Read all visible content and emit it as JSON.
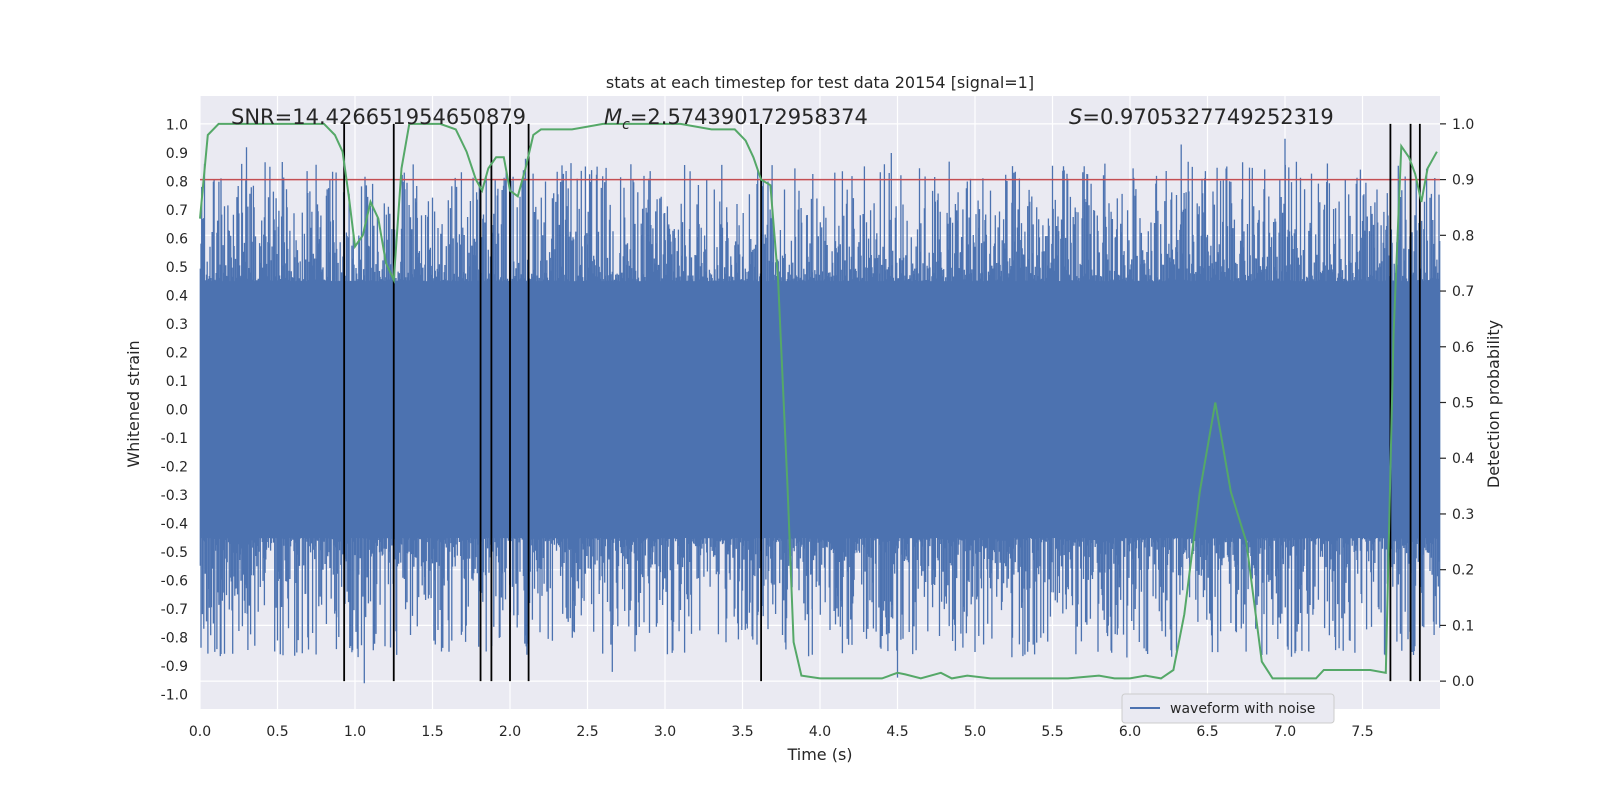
{
  "chart_data": {
    "type": "line",
    "title": "stats at each timestep for test data 20154 [signal=1]",
    "xlabel": "Time (s)",
    "ylabel": "Whitened strain",
    "ylabel_right": "Detection probability",
    "xlim": [
      0,
      8
    ],
    "ylim": [
      -1.05,
      1.1
    ],
    "ylim_right": [
      -0.05,
      1.05
    ],
    "x_ticks": [
      0.0,
      0.5,
      1.0,
      1.5,
      2.0,
      2.5,
      3.0,
      3.5,
      4.0,
      4.5,
      5.0,
      5.5,
      6.0,
      6.5,
      7.0,
      7.5
    ],
    "y_ticks": [
      1.0,
      0.9,
      0.8,
      0.7,
      0.6,
      0.5,
      0.4,
      0.3,
      0.2,
      0.1,
      0.0,
      -0.1,
      -0.2,
      -0.3,
      -0.4,
      -0.5,
      -0.6,
      -0.7,
      -0.8,
      -0.9,
      -1.0
    ],
    "y_ticks_right": [
      1.0,
      0.9,
      0.8,
      0.7,
      0.6,
      0.5,
      0.4,
      0.3,
      0.2,
      0.1,
      0.0
    ],
    "tick_labels_x": [
      "0.0",
      "0.5",
      "1.0",
      "1.5",
      "2.0",
      "2.5",
      "3.0",
      "3.5",
      "4.0",
      "4.5",
      "5.0",
      "5.5",
      "6.0",
      "6.5",
      "7.0",
      "7.5"
    ],
    "tick_labels_y": [
      "1.0",
      "0.9",
      "0.8",
      "0.7",
      "0.6",
      "0.5",
      "0.4",
      "0.3",
      "0.2",
      "0.1",
      "0.0",
      "-0.1",
      "-0.2",
      "-0.3",
      "-0.4",
      "-0.5",
      "-0.6",
      "-0.7",
      "-0.8",
      "-0.9",
      "-1.0"
    ],
    "tick_labels_y_right": [
      "1.0",
      "0.9",
      "0.8",
      "0.7",
      "0.6",
      "0.5",
      "0.4",
      "0.3",
      "0.2",
      "0.1",
      "0.0"
    ],
    "annotations": {
      "snr": "SNR=14.426651954650879",
      "mc_symbol": "M",
      "mc_sub": "c",
      "mc_value": "=2.574390172958374",
      "s_symbol": "S",
      "s_value": "=0.9705327749252319"
    },
    "threshold": 0.9,
    "event_lines_x": [
      0.93,
      1.25,
      1.81,
      1.88,
      2.0,
      2.12,
      3.62,
      7.68,
      7.81,
      7.87
    ],
    "series": [
      {
        "name": "waveform with noise",
        "color": "#4c72b0",
        "kind": "noise",
        "band_upper": 0.45,
        "band_lower": -0.45,
        "peaks": [
          [
            0.3,
            0.92
          ],
          [
            0.88,
            -0.84
          ],
          [
            1.06,
            -0.96
          ],
          [
            2.1,
            0.88
          ],
          [
            2.66,
            -0.92
          ],
          [
            3.95,
            -0.86
          ],
          [
            4.46,
            0.9
          ],
          [
            4.5,
            -0.94
          ],
          [
            4.95,
            0.8
          ],
          [
            5.0,
            -0.85
          ],
          [
            6.33,
            0.93
          ],
          [
            7.0,
            0.95
          ],
          [
            7.82,
            -0.85
          ]
        ]
      },
      {
        "name": "detection probability",
        "color": "#55a868",
        "kind": "line",
        "x": [
          0.0,
          0.05,
          0.12,
          0.2,
          0.35,
          0.5,
          0.65,
          0.8,
          0.87,
          0.92,
          0.96,
          1.0,
          1.05,
          1.1,
          1.15,
          1.2,
          1.25,
          1.3,
          1.35,
          1.4,
          1.55,
          1.65,
          1.72,
          1.78,
          1.82,
          1.86,
          1.91,
          1.96,
          2.0,
          2.05,
          2.1,
          2.15,
          2.2,
          2.3,
          2.4,
          2.6,
          2.75,
          2.9,
          3.1,
          3.3,
          3.45,
          3.52,
          3.57,
          3.62,
          3.68,
          3.73,
          3.79,
          3.83,
          3.88,
          4.0,
          4.2,
          4.4,
          4.5,
          4.55,
          4.65,
          4.78,
          4.85,
          4.95,
          5.1,
          5.2,
          5.4,
          5.6,
          5.8,
          5.9,
          6.0,
          6.1,
          6.2,
          6.28,
          6.35,
          6.45,
          6.55,
          6.65,
          6.75,
          6.85,
          6.92,
          7.0,
          7.2,
          7.25,
          7.3,
          7.4,
          7.55,
          7.65,
          7.7,
          7.75,
          7.8,
          7.84,
          7.88,
          7.92,
          7.98
        ],
        "y": [
          0.83,
          0.98,
          1.0,
          1.0,
          1.0,
          1.0,
          1.0,
          1.0,
          0.98,
          0.95,
          0.87,
          0.78,
          0.8,
          0.86,
          0.83,
          0.75,
          0.72,
          0.92,
          1.0,
          1.0,
          1.0,
          0.99,
          0.95,
          0.9,
          0.88,
          0.92,
          0.94,
          0.94,
          0.88,
          0.87,
          0.92,
          0.98,
          0.99,
          0.99,
          0.99,
          1.0,
          1.0,
          1.0,
          1.0,
          0.99,
          0.99,
          0.97,
          0.94,
          0.9,
          0.89,
          0.72,
          0.35,
          0.07,
          0.01,
          0.005,
          0.005,
          0.005,
          0.015,
          0.012,
          0.005,
          0.015,
          0.005,
          0.01,
          0.005,
          0.005,
          0.005,
          0.005,
          0.01,
          0.005,
          0.005,
          0.01,
          0.005,
          0.02,
          0.12,
          0.34,
          0.5,
          0.34,
          0.25,
          0.035,
          0.005,
          0.005,
          0.005,
          0.02,
          0.02,
          0.02,
          0.02,
          0.015,
          0.62,
          0.96,
          0.94,
          0.91,
          0.86,
          0.92,
          0.95
        ]
      }
    ],
    "legend": {
      "label": "waveform with noise",
      "placement": "lower-right"
    }
  }
}
